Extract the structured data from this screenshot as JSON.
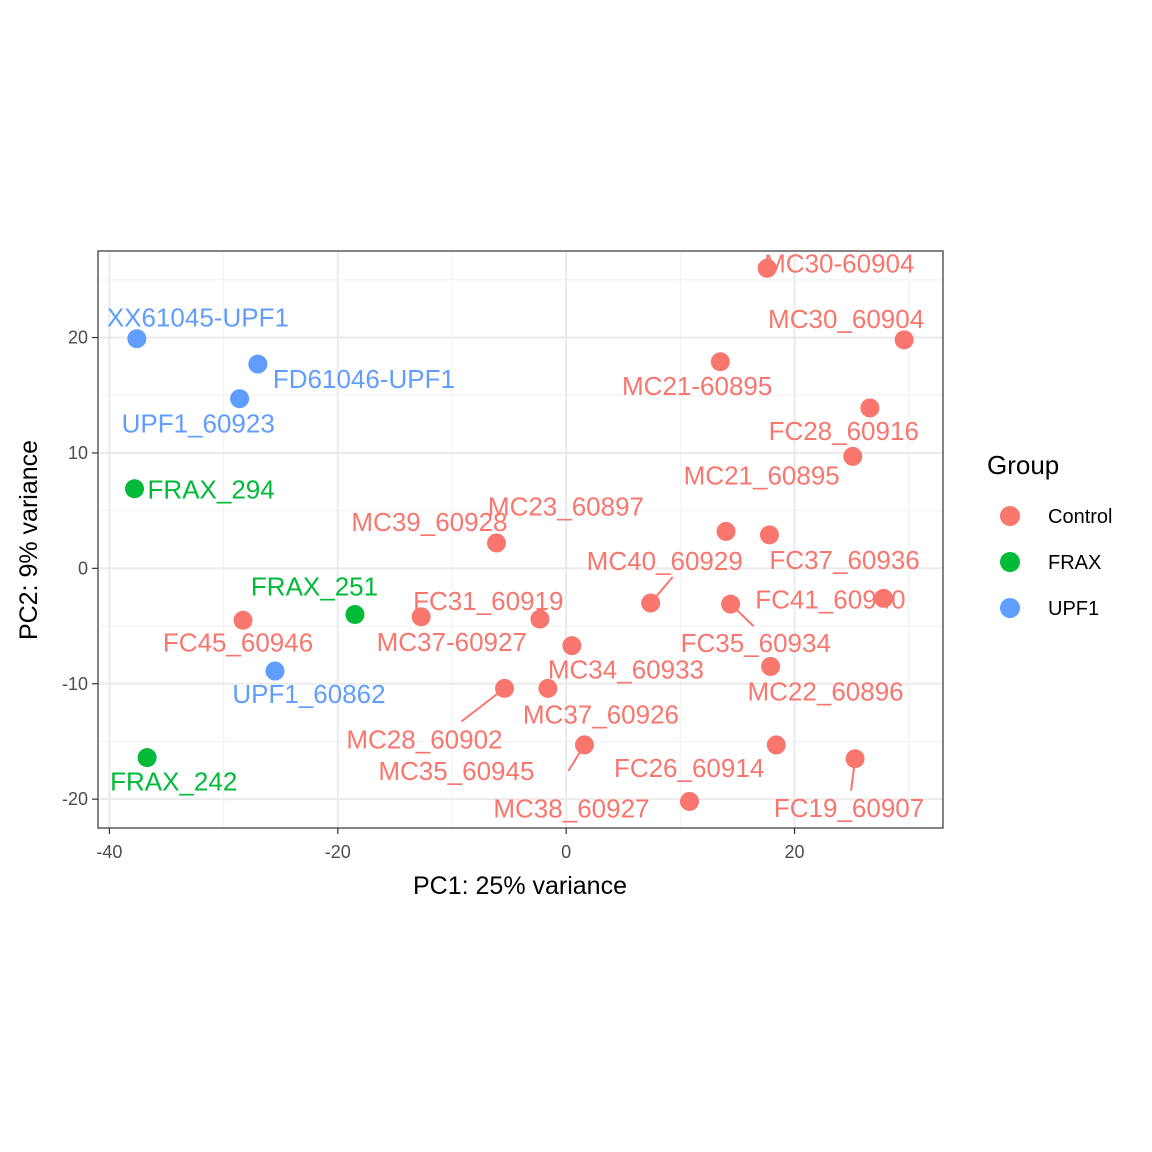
{
  "chart_data": {
    "type": "scatter",
    "xlabel": "PC1: 25% variance",
    "ylabel": "PC2: 9% variance",
    "xlim": [
      -41,
      33
    ],
    "ylim": [
      -22.5,
      27.5
    ],
    "x_ticks": [
      -40,
      -20,
      0,
      20
    ],
    "x_tick_labels": [
      "-40",
      "-20",
      "0",
      "20"
    ],
    "y_ticks": [
      -20,
      -10,
      0,
      10,
      20
    ],
    "y_tick_labels": [
      "-20",
      "-10",
      "0",
      "10",
      "20"
    ],
    "grid": true,
    "legend": {
      "title": "Group",
      "placement": "right",
      "entries": [
        {
          "name": "Control",
          "color": "#F8766D"
        },
        {
          "name": "FRAX",
          "color": "#00BA38"
        },
        {
          "name": "UPF1",
          "color": "#619CFF"
        }
      ]
    },
    "points": [
      {
        "label": "XX61045-UPF1",
        "group": "UPF1",
        "x": -37.6,
        "y": 19.9
      },
      {
        "label": "FD61046-UPF1",
        "group": "UPF1",
        "x": -27.0,
        "y": 17.7
      },
      {
        "label": "UPF1_60923",
        "group": "UPF1",
        "x": -28.6,
        "y": 14.7
      },
      {
        "label": "UPF1_60862",
        "group": "UPF1",
        "x": -25.5,
        "y": -8.9
      },
      {
        "label": "FRAX_294",
        "group": "FRAX",
        "x": -37.8,
        "y": 6.9
      },
      {
        "label": "FRAX_251",
        "group": "FRAX",
        "x": -18.5,
        "y": -4.0
      },
      {
        "label": "FRAX_242",
        "group": "FRAX",
        "x": -36.7,
        "y": -16.4
      },
      {
        "label": "MC30-60904",
        "group": "Control",
        "x": 17.6,
        "y": 26.0
      },
      {
        "label": "MC30_60904",
        "group": "Control",
        "x": 29.6,
        "y": 19.8
      },
      {
        "label": "MC21-60895",
        "group": "Control",
        "x": 13.5,
        "y": 17.9
      },
      {
        "label": "FC28_60916",
        "group": "Control",
        "x": 26.6,
        "y": 13.9
      },
      {
        "label": "MC21_60895",
        "group": "Control",
        "x": 25.1,
        "y": 9.7
      },
      {
        "label": "MC39_60928",
        "group": "Control",
        "x": -6.1,
        "y": 2.2
      },
      {
        "label": "MC23_60897",
        "group": "Control",
        "x": 14.0,
        "y": 3.2
      },
      {
        "label": "FC37_60936",
        "group": "Control",
        "x": 17.8,
        "y": 2.9
      },
      {
        "label": "MC40_60929",
        "group": "Control",
        "x": 7.4,
        "y": -3.0
      },
      {
        "label": "FC41_60940",
        "group": "Control",
        "x": 27.8,
        "y": -2.6
      },
      {
        "label": "FC35_60934",
        "group": "Control",
        "x": 14.4,
        "y": -3.1
      },
      {
        "label": "FC31_60919",
        "group": "Control",
        "x": -12.7,
        "y": -4.2
      },
      {
        "label": "MC37-60927",
        "group": "Control",
        "x": -2.3,
        "y": -4.4
      },
      {
        "label": "FC45_60946",
        "group": "Control",
        "x": -28.3,
        "y": -4.5
      },
      {
        "label": "MC34_60933",
        "group": "Control",
        "x": 0.5,
        "y": -6.7
      },
      {
        "label": "MC22_60896",
        "group": "Control",
        "x": 17.9,
        "y": -8.5
      },
      {
        "label": "MC28_60902",
        "group": "Control",
        "x": -5.4,
        "y": -10.4
      },
      {
        "label": "MC37_60926",
        "group": "Control",
        "x": -1.6,
        "y": -10.4
      },
      {
        "label": "MC35_60945",
        "group": "Control",
        "x": 1.6,
        "y": -15.3
      },
      {
        "label": "FC26_60914",
        "group": "Control",
        "x": 18.4,
        "y": -15.3
      },
      {
        "label": "FC19_60907",
        "group": "Control",
        "x": 25.3,
        "y": -16.5
      },
      {
        "label": "MC38_60927",
        "group": "Control",
        "x": 10.8,
        "y": -20.2
      }
    ]
  }
}
